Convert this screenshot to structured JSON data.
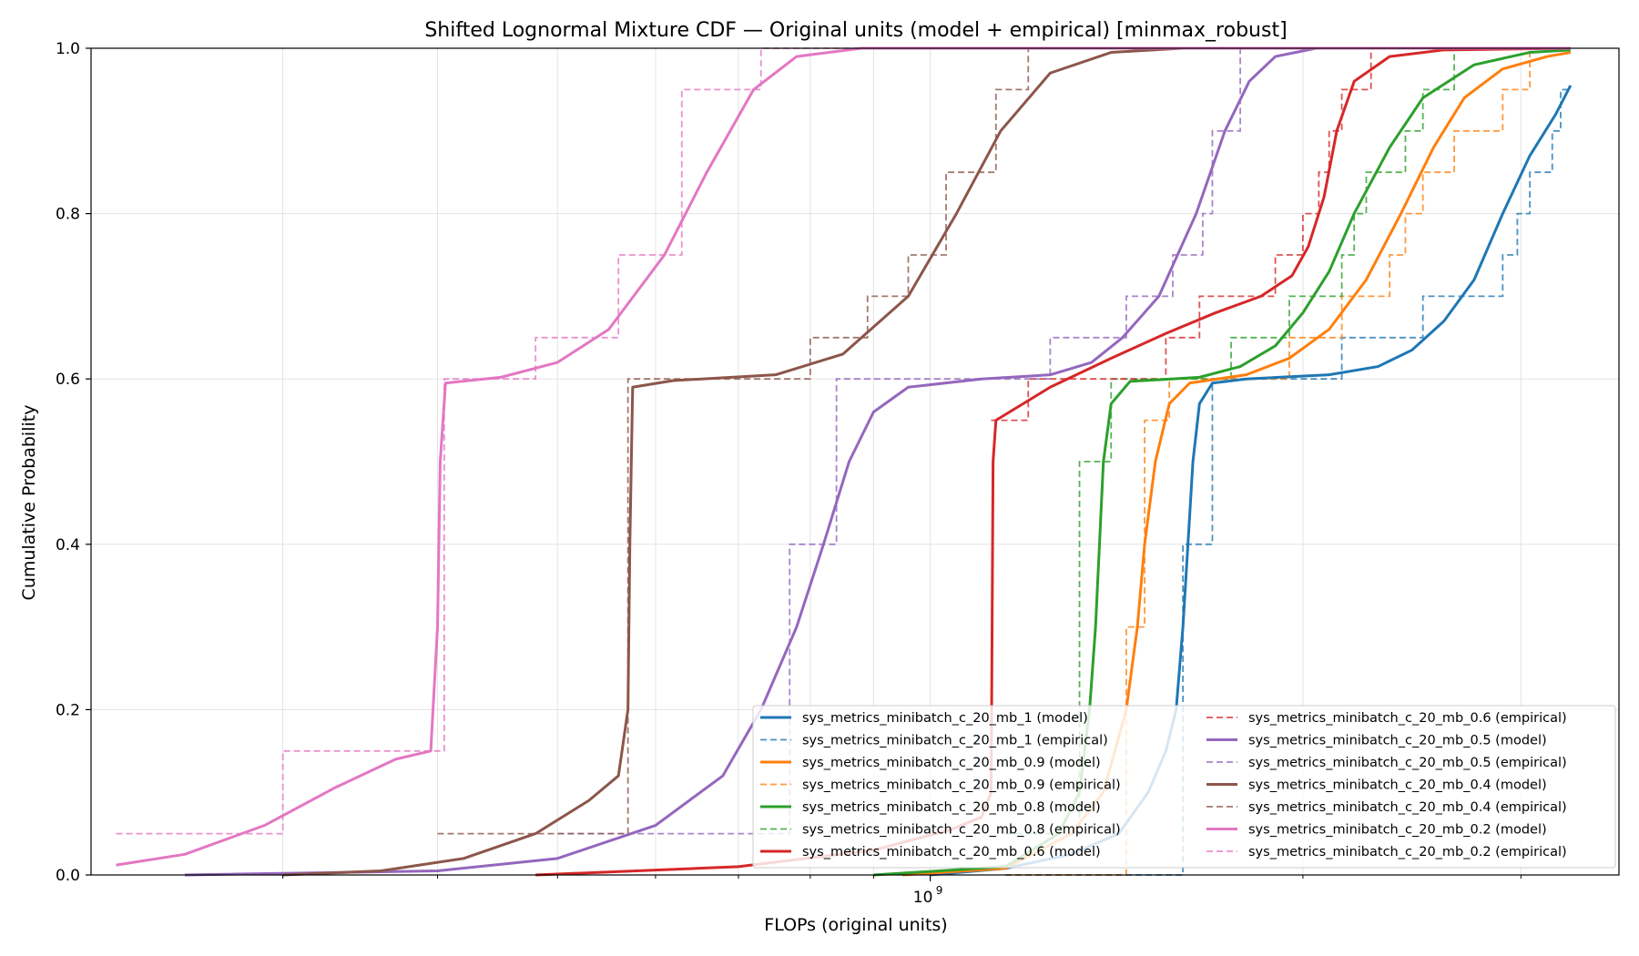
{
  "chart_data": {
    "type": "line",
    "title": "Shifted Lognormal Mixture CDF — Original units (model + empirical) [minmax_robust]",
    "xlabel": "FLOPs (original units)",
    "ylabel": "Cumulative Probability",
    "xscale": "log",
    "xlim": [
      210000000,
      3600000000
    ],
    "ylim": [
      0,
      1
    ],
    "x_ticks": [
      {
        "value": 1000000000,
        "base": "10",
        "exp": "9"
      }
    ],
    "x_minor_ticks": [
      300000000,
      400000000,
      500000000,
      600000000,
      700000000,
      800000000,
      900000000,
      2000000000,
      3000000000
    ],
    "y_ticks": [
      {
        "value": 0,
        "label": "0.0"
      },
      {
        "value": 0.2,
        "label": "0.2"
      },
      {
        "value": 0.4,
        "label": "0.4"
      },
      {
        "value": 0.6,
        "label": "0.6"
      },
      {
        "value": 0.8,
        "label": "0.8"
      },
      {
        "value": 1,
        "label": "1.0"
      }
    ],
    "grid": true,
    "legend_position": "lower-right",
    "legend_columns": 2,
    "series": [
      {
        "name": "sys_metrics_minibatch_c_20_mb_1 (model)",
        "kind": "model",
        "color": "#1f77b4",
        "points": [
          [
            1000000000,
            0
          ],
          [
            1150000000,
            0.008
          ],
          [
            1300000000,
            0.025
          ],
          [
            1420000000,
            0.05
          ],
          [
            1500000000,
            0.1
          ],
          [
            1550000000,
            0.15
          ],
          [
            1580000000,
            0.2
          ],
          [
            1600000000,
            0.3
          ],
          [
            1615000000,
            0.4
          ],
          [
            1630000000,
            0.5
          ],
          [
            1650000000,
            0.57
          ],
          [
            1690000000,
            0.595
          ],
          [
            1800000000,
            0.6
          ],
          [
            2100000000,
            0.605
          ],
          [
            2300000000,
            0.615
          ],
          [
            2450000000,
            0.635
          ],
          [
            2600000000,
            0.67
          ],
          [
            2750000000,
            0.72
          ],
          [
            2900000000,
            0.8
          ],
          [
            3050000000,
            0.87
          ],
          [
            3200000000,
            0.92
          ],
          [
            3290000000,
            0.955
          ]
        ]
      },
      {
        "name": "sys_metrics_minibatch_c_20_mb_1 (empirical)",
        "kind": "empirical",
        "color": "#1f77b4",
        "steps": [
          [
            1150000000,
            0
          ],
          [
            1600000000,
            0.4
          ],
          [
            1690000000,
            0.6
          ],
          [
            2150000000,
            0.65
          ],
          [
            2500000000,
            0.7
          ],
          [
            2900000000,
            0.75
          ],
          [
            2980000000,
            0.8
          ],
          [
            3050000000,
            0.85
          ],
          [
            3180000000,
            0.9
          ],
          [
            3230000000,
            0.95
          ],
          [
            3290000000,
            0.95
          ]
        ]
      },
      {
        "name": "sys_metrics_minibatch_c_20_mb_0.9 (model)",
        "kind": "model",
        "color": "#ff7f0e",
        "points": [
          [
            950000000,
            0
          ],
          [
            1150000000,
            0.008
          ],
          [
            1300000000,
            0.05
          ],
          [
            1380000000,
            0.1
          ],
          [
            1440000000,
            0.2
          ],
          [
            1470000000,
            0.3
          ],
          [
            1490000000,
            0.4
          ],
          [
            1520000000,
            0.5
          ],
          [
            1560000000,
            0.57
          ],
          [
            1620000000,
            0.595
          ],
          [
            1800000000,
            0.605
          ],
          [
            1950000000,
            0.625
          ],
          [
            2100000000,
            0.66
          ],
          [
            2250000000,
            0.72
          ],
          [
            2400000000,
            0.8
          ],
          [
            2550000000,
            0.88
          ],
          [
            2700000000,
            0.94
          ],
          [
            2900000000,
            0.975
          ],
          [
            3150000000,
            0.99
          ],
          [
            3290000000,
            0.995
          ]
        ]
      },
      {
        "name": "sys_metrics_minibatch_c_20_mb_0.9 (empirical)",
        "kind": "empirical",
        "color": "#ff7f0e",
        "steps": [
          [
            1150000000,
            0
          ],
          [
            1440000000,
            0.3
          ],
          [
            1490000000,
            0.55
          ],
          [
            1560000000,
            0.6
          ],
          [
            1950000000,
            0.65
          ],
          [
            2150000000,
            0.7
          ],
          [
            2350000000,
            0.75
          ],
          [
            2420000000,
            0.8
          ],
          [
            2500000000,
            0.85
          ],
          [
            2650000000,
            0.9
          ],
          [
            2900000000,
            0.95
          ],
          [
            3050000000,
            1.0
          ],
          [
            3290000000,
            1.0
          ]
        ]
      },
      {
        "name": "sys_metrics_minibatch_c_20_mb_0.8 (model)",
        "kind": "model",
        "color": "#2ca02c",
        "points": [
          [
            900000000,
            0
          ],
          [
            1150000000,
            0.01
          ],
          [
            1270000000,
            0.05
          ],
          [
            1320000000,
            0.1
          ],
          [
            1345000000,
            0.2
          ],
          [
            1360000000,
            0.3
          ],
          [
            1370000000,
            0.4
          ],
          [
            1380000000,
            0.5
          ],
          [
            1400000000,
            0.57
          ],
          [
            1450000000,
            0.597
          ],
          [
            1650000000,
            0.602
          ],
          [
            1780000000,
            0.615
          ],
          [
            1900000000,
            0.64
          ],
          [
            2000000000,
            0.68
          ],
          [
            2100000000,
            0.73
          ],
          [
            2200000000,
            0.8
          ],
          [
            2350000000,
            0.88
          ],
          [
            2500000000,
            0.94
          ],
          [
            2750000000,
            0.98
          ],
          [
            3050000000,
            0.995
          ],
          [
            3290000000,
            0.998
          ]
        ]
      },
      {
        "name": "sys_metrics_minibatch_c_20_mb_0.8 (empirical)",
        "kind": "empirical",
        "color": "#2ca02c",
        "steps": [
          [
            1150000000,
            0.05
          ],
          [
            1320000000,
            0.5
          ],
          [
            1400000000,
            0.6
          ],
          [
            1750000000,
            0.65
          ],
          [
            1950000000,
            0.7
          ],
          [
            2150000000,
            0.75
          ],
          [
            2200000000,
            0.8
          ],
          [
            2250000000,
            0.85
          ],
          [
            2420000000,
            0.9
          ],
          [
            2500000000,
            0.95
          ],
          [
            2650000000,
            1.0
          ],
          [
            3290000000,
            1.0
          ]
        ]
      },
      {
        "name": "sys_metrics_minibatch_c_20_mb_0.6 (model)",
        "kind": "model",
        "color": "#d62728",
        "points": [
          [
            480000000,
            0
          ],
          [
            700000000,
            0.01
          ],
          [
            900000000,
            0.03
          ],
          [
            1040000000,
            0.055
          ],
          [
            1100000000,
            0.07
          ],
          [
            1120000000,
            0.1
          ],
          [
            1122000000,
            0.3
          ],
          [
            1124000000,
            0.5
          ],
          [
            1130000000,
            0.55
          ],
          [
            1250000000,
            0.59
          ],
          [
            1400000000,
            0.625
          ],
          [
            1550000000,
            0.655
          ],
          [
            1700000000,
            0.68
          ],
          [
            1850000000,
            0.7
          ],
          [
            1960000000,
            0.725
          ],
          [
            2020000000,
            0.76
          ],
          [
            2080000000,
            0.82
          ],
          [
            2130000000,
            0.9
          ],
          [
            2200000000,
            0.96
          ],
          [
            2350000000,
            0.99
          ],
          [
            2600000000,
            0.998
          ],
          [
            3290000000,
            1.0
          ]
        ]
      },
      {
        "name": "sys_metrics_minibatch_c_20_mb_0.6 (empirical)",
        "kind": "empirical",
        "color": "#d62728",
        "steps": [
          [
            1120000000,
            0.55
          ],
          [
            1200000000,
            0.6
          ],
          [
            1550000000,
            0.65
          ],
          [
            1650000000,
            0.7
          ],
          [
            1900000000,
            0.75
          ],
          [
            2000000000,
            0.8
          ],
          [
            2060000000,
            0.85
          ],
          [
            2100000000,
            0.9
          ],
          [
            2150000000,
            0.95
          ],
          [
            2270000000,
            1.0
          ],
          [
            3290000000,
            1.0
          ]
        ]
      },
      {
        "name": "sys_metrics_minibatch_c_20_mb_0.5 (model)",
        "kind": "model",
        "color": "#9467bd",
        "points": [
          [
            250000000,
            0
          ],
          [
            400000000,
            0.005
          ],
          [
            500000000,
            0.02
          ],
          [
            600000000,
            0.06
          ],
          [
            680000000,
            0.12
          ],
          [
            730000000,
            0.2
          ],
          [
            780000000,
            0.3
          ],
          [
            820000000,
            0.4
          ],
          [
            860000000,
            0.5
          ],
          [
            900000000,
            0.56
          ],
          [
            960000000,
            0.59
          ],
          [
            1100000000,
            0.6
          ],
          [
            1250000000,
            0.605
          ],
          [
            1350000000,
            0.62
          ],
          [
            1430000000,
            0.65
          ],
          [
            1530000000,
            0.7
          ],
          [
            1640000000,
            0.8
          ],
          [
            1730000000,
            0.9
          ],
          [
            1810000000,
            0.96
          ],
          [
            1900000000,
            0.99
          ],
          [
            2050000000,
            1.0
          ],
          [
            3290000000,
            1.0
          ]
        ]
      },
      {
        "name": "sys_metrics_minibatch_c_20_mb_0.5 (empirical)",
        "kind": "empirical",
        "color": "#9467bd",
        "steps": [
          [
            500000000,
            0.05
          ],
          [
            770000000,
            0.4
          ],
          [
            840000000,
            0.6
          ],
          [
            1250000000,
            0.65
          ],
          [
            1440000000,
            0.7
          ],
          [
            1570000000,
            0.75
          ],
          [
            1660000000,
            0.8
          ],
          [
            1690000000,
            0.9
          ],
          [
            1780000000,
            1.0
          ],
          [
            3290000000,
            1.0
          ]
        ]
      },
      {
        "name": "sys_metrics_minibatch_c_20_mb_0.4 (model)",
        "kind": "model",
        "color": "#8c564b",
        "points": [
          [
            300000000,
            0
          ],
          [
            360000000,
            0.005
          ],
          [
            420000000,
            0.02
          ],
          [
            480000000,
            0.05
          ],
          [
            530000000,
            0.09
          ],
          [
            560000000,
            0.12
          ],
          [
            570000000,
            0.2
          ],
          [
            572000000,
            0.4
          ],
          [
            575000000,
            0.59
          ],
          [
            620000000,
            0.598
          ],
          [
            750000000,
            0.605
          ],
          [
            850000000,
            0.63
          ],
          [
            960000000,
            0.7
          ],
          [
            1050000000,
            0.8
          ],
          [
            1140000000,
            0.9
          ],
          [
            1250000000,
            0.97
          ],
          [
            1400000000,
            0.995
          ],
          [
            1600000000,
            1.0
          ],
          [
            3290000000,
            1.0
          ]
        ]
      },
      {
        "name": "sys_metrics_minibatch_c_20_mb_0.4 (empirical)",
        "kind": "empirical",
        "color": "#8c564b",
        "steps": [
          [
            400000000,
            0.05
          ],
          [
            570000000,
            0.6
          ],
          [
            800000000,
            0.65
          ],
          [
            890000000,
            0.7
          ],
          [
            960000000,
            0.75
          ],
          [
            1030000000,
            0.85
          ],
          [
            1130000000,
            0.95
          ],
          [
            1200000000,
            1.0
          ],
          [
            3290000000,
            1.0
          ]
        ]
      },
      {
        "name": "sys_metrics_minibatch_c_20_mb_0.2 (model)",
        "kind": "model",
        "color": "#e377c2",
        "points": [
          [
            220000000,
            0.012
          ],
          [
            250000000,
            0.025
          ],
          [
            290000000,
            0.06
          ],
          [
            330000000,
            0.105
          ],
          [
            370000000,
            0.14
          ],
          [
            395000000,
            0.15
          ],
          [
            400000000,
            0.3
          ],
          [
            402000000,
            0.5
          ],
          [
            406000000,
            0.595
          ],
          [
            450000000,
            0.602
          ],
          [
            500000000,
            0.62
          ],
          [
            550000000,
            0.66
          ],
          [
            610000000,
            0.75
          ],
          [
            660000000,
            0.85
          ],
          [
            720000000,
            0.95
          ],
          [
            780000000,
            0.99
          ],
          [
            880000000,
            1.0
          ],
          [
            3290000000,
            1.0
          ]
        ]
      },
      {
        "name": "sys_metrics_minibatch_c_20_mb_0.2 (empirical)",
        "kind": "empirical",
        "color": "#e377c2",
        "steps": [
          [
            220000000,
            0.05
          ],
          [
            300000000,
            0.15
          ],
          [
            405000000,
            0.6
          ],
          [
            480000000,
            0.65
          ],
          [
            560000000,
            0.75
          ],
          [
            630000000,
            0.95
          ],
          [
            730000000,
            1.0
          ],
          [
            3290000000,
            1.0
          ]
        ]
      }
    ]
  }
}
